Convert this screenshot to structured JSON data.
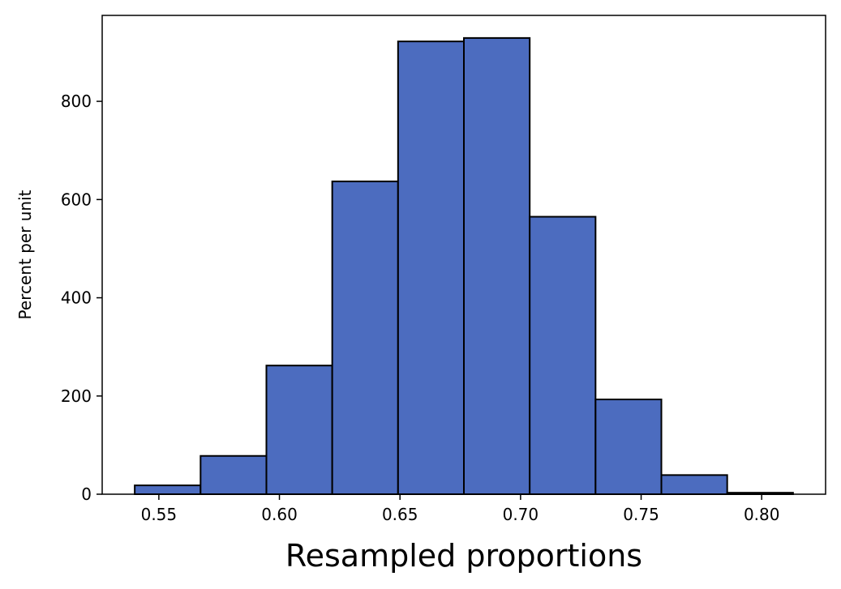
{
  "chart_data": {
    "type": "bar",
    "subtype": "histogram",
    "title": "",
    "xlabel": "Resampled proportions",
    "ylabel": "Percent per unit",
    "bin_edges": [
      0.54,
      0.5673,
      0.5946,
      0.6219,
      0.6492,
      0.6765,
      0.7038,
      0.7311,
      0.7584,
      0.7857,
      0.813
    ],
    "values": [
      18,
      78,
      262,
      637,
      922,
      929,
      565,
      193,
      39,
      3
    ],
    "xlim": [
      0.5265,
      0.8265
    ],
    "ylim": [
      0,
      975
    ],
    "xticks": [
      0.55,
      0.6,
      0.65,
      0.7,
      0.75,
      0.8
    ],
    "xtick_labels": [
      "0.55",
      "0.60",
      "0.65",
      "0.70",
      "0.75",
      "0.80"
    ],
    "yticks": [
      0,
      200,
      400,
      600,
      800
    ],
    "ytick_labels": [
      "0",
      "200",
      "400",
      "600",
      "800"
    ],
    "bar_color": "#4c6cbf",
    "edge_color": "#000000",
    "grid": false,
    "legend": "none"
  }
}
